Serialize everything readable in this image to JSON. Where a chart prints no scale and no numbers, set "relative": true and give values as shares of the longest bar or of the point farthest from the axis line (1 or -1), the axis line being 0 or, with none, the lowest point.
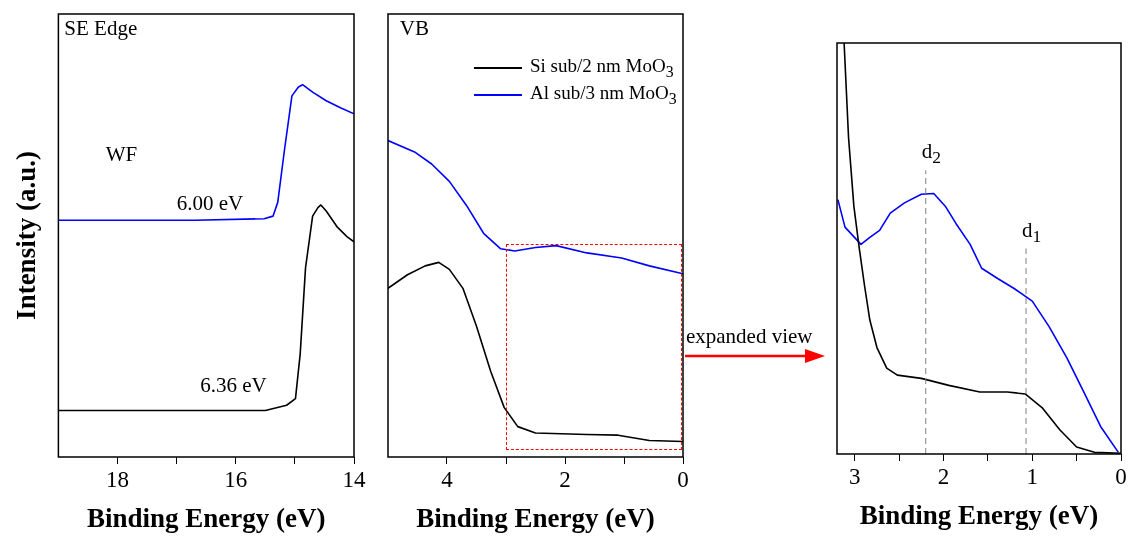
{
  "chart_data": [
    {
      "type": "line",
      "relative": true,
      "xlabel": "Binding Energy (eV)",
      "ylabel": "Intensity (a.u.)",
      "xlim": [
        19,
        14
      ],
      "xticks": [
        18,
        {
          "value": 17,
          "label": null
        },
        16,
        {
          "value": 15,
          "label": null
        },
        14
      ],
      "annotations": [
        "SE Edge",
        "WF",
        "6.00 eV",
        "6.36 eV"
      ],
      "series": [
        {
          "color": "#0000ff",
          "x": [
            19,
            16.69,
            15.52,
            15.37,
            15.29,
            15.17,
            15.05,
            14.94,
            14.87,
            14.7,
            14.47,
            14.23,
            14.0
          ],
          "values": [
            0.636,
            0.636,
            0.64,
            0.647,
            0.684,
            0.832,
            0.97,
            0.994,
            1,
            0.98,
            0.957,
            0.938,
            0.922
          ]
        },
        {
          "color": "#000000",
          "x": [
            19,
            15.5,
            15.14,
            14.99,
            14.91,
            14.82,
            14.7,
            14.61,
            14.56,
            14.47,
            14.29,
            14.12,
            14.0
          ],
          "values": [
            0.125,
            0.125,
            0.139,
            0.157,
            0.277,
            0.508,
            0.647,
            0.67,
            0.677,
            0.661,
            0.619,
            0.592,
            0.578
          ]
        }
      ]
    },
    {
      "type": "line",
      "relative": true,
      "xlabel": "Binding Energy (eV)",
      "xlim": [
        5,
        0
      ],
      "xticks": [
        4,
        {
          "value": 3,
          "label": null
        },
        2,
        {
          "value": 1,
          "label": null
        },
        0
      ],
      "legend": "top right",
      "annotations": [
        "VB",
        "expanded view"
      ],
      "series": [
        {
          "name": "Si sub/2 nm MoO$_{3}$",
          "color": "#000000",
          "x": [
            5,
            4.67,
            4.37,
            4.14,
            3.96,
            3.73,
            3.5,
            3.26,
            3.03,
            2.8,
            2.5,
            1.63,
            1.1,
            0.57,
            0
          ],
          "values": [
            0.533,
            0.576,
            0.604,
            0.615,
            0.593,
            0.533,
            0.413,
            0.271,
            0.156,
            0.096,
            0.076,
            0.071,
            0.069,
            0.052,
            0.049
          ]
        },
        {
          "name": "Al sub/3 nm MoO$_{3}$",
          "color": "#0000ff",
          "x": [
            5,
            4.55,
            4.26,
            3.96,
            3.67,
            3.38,
            3.09,
            2.85,
            2.5,
            2.15,
            1.63,
            1.04,
            0.57,
            0
          ],
          "values": [
            1,
            0.964,
            0.926,
            0.871,
            0.795,
            0.707,
            0.658,
            0.651,
            0.662,
            0.668,
            0.645,
            0.629,
            0.604,
            0.579
          ]
        }
      ]
    },
    {
      "type": "line",
      "relative": true,
      "xlabel": "Binding Energy (eV)",
      "xlim": [
        3.2,
        0
      ],
      "xticks": [
        3,
        {
          "value": 2.5,
          "label": null
        },
        2,
        {
          "value": 1.5,
          "label": null
        },
        1,
        {
          "value": 0.5,
          "label": null
        },
        0
      ],
      "ref_lines": [
        {
          "axis": "x",
          "value": 2.2,
          "label": "d$_{2}$",
          "color": "#808080",
          "line_style": "dashed"
        },
        {
          "axis": "x",
          "value": 1.07,
          "label": "d$_{1}$",
          "color": "#808080",
          "line_style": "dashed"
        }
      ],
      "series": [
        {
          "color": "#000000",
          "x": [
            3.12,
            3.07,
            3.01,
            2.95,
            2.89,
            2.83,
            2.75,
            2.64,
            2.52,
            2.25,
            1.94,
            1.59,
            1.28,
            1.08,
            0.89,
            0.69,
            0.5,
            0.3,
            0
          ],
          "values": [
            1,
            0.77,
            0.603,
            0.502,
            0.41,
            0.326,
            0.259,
            0.209,
            0.192,
            0.184,
            0.167,
            0.151,
            0.151,
            0.146,
            0.113,
            0.059,
            0.017,
            0.004,
            0.002
          ]
        },
        {
          "color": "#0000ff",
          "x": [
            3.19,
            3.11,
            2.93,
            2.83,
            2.72,
            2.6,
            2.44,
            2.25,
            2.11,
            1.98,
            1.86,
            1.7,
            1.57,
            1.39,
            1.2,
            1.0,
            0.81,
            0.61,
            0.42,
            0.23,
            0.03
          ],
          "values": [
            0.619,
            0.552,
            0.51,
            0.527,
            0.544,
            0.586,
            0.611,
            0.632,
            0.634,
            0.603,
            0.561,
            0.51,
            0.452,
            0.427,
            0.402,
            0.372,
            0.31,
            0.234,
            0.151,
            0.067,
            0.004
          ]
        }
      ]
    }
  ]
}
